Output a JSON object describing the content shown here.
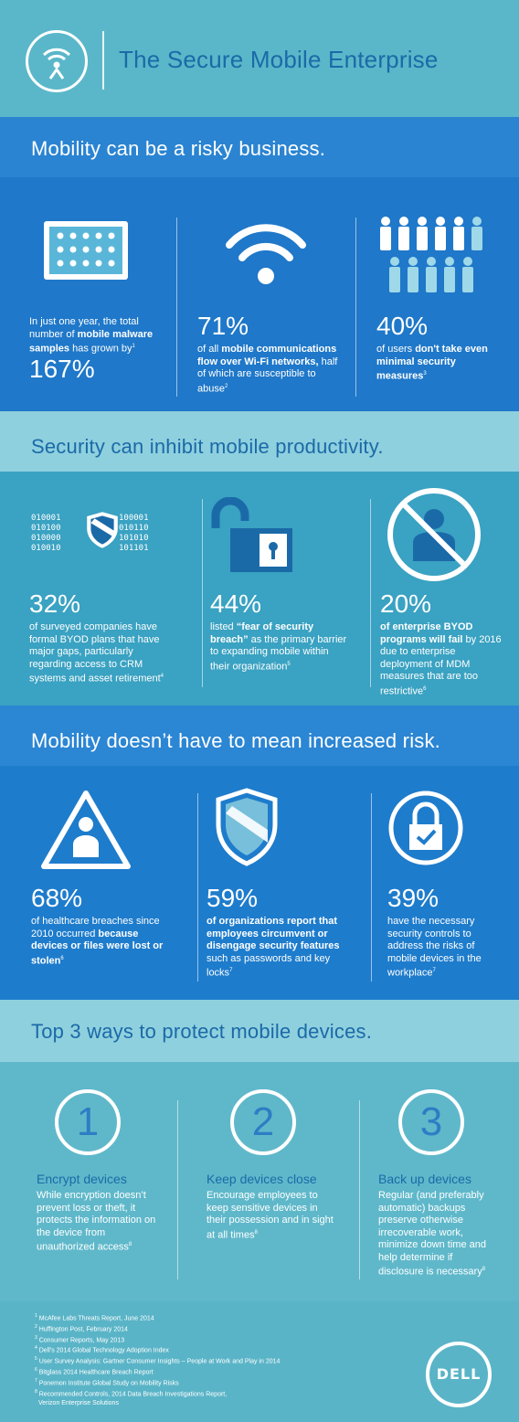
{
  "header": {
    "title": "The Secure Mobile Enterprise",
    "logo_icon": "wifi-person-icon"
  },
  "sections": [
    {
      "heading": "Mobility can be a risky business.",
      "stats": [
        {
          "intro": "In just one year, the total number of ",
          "bold": "mobile malware samples",
          "after": " has grown by",
          "ref": "1",
          "value": "167%",
          "icon": "malware-tablet-icon"
        },
        {
          "value": "71%",
          "text_pre": "of all ",
          "bold": "mobile communications flow over Wi-Fi networks,",
          "text_post": " half of which are susceptible to abuse",
          "ref": "2",
          "icon": "wifi-icon"
        },
        {
          "value": "40%",
          "text_pre": "of users ",
          "bold": "don't take even minimal security measures",
          "text_post": "",
          "ref": "3",
          "icon": "people-icon"
        }
      ]
    },
    {
      "heading": "Security can inhibit mobile productivity.",
      "stats": [
        {
          "value": "32%",
          "text_pre": "of surveyed companies have formal BYOD plans that have major gaps, particularly regarding access to CRM systems and asset retirement",
          "bold": "",
          "text_post": "",
          "ref": "4",
          "icon": "binary-shield-icon",
          "binary": [
            "010001",
            "100001",
            "010100",
            "010110",
            "010000",
            "101010",
            "010010",
            "101101"
          ]
        },
        {
          "value": "44%",
          "text_pre": "listed ",
          "bold": "“fear of security breach”",
          "text_post": " as the primary barrier to expanding mobile within their organization",
          "ref": "5",
          "icon": "open-padlock-icon"
        },
        {
          "value": "20%",
          "text_pre": "",
          "bold": "of enterprise BYOD programs will fail",
          "text_post": " by 2016 due to enterprise deployment of MDM measures that are too restrictive",
          "ref": "6",
          "icon": "no-phone-icon"
        }
      ]
    },
    {
      "heading": "Mobility doesn’t have to mean increased risk.",
      "stats": [
        {
          "value": "68%",
          "text_pre": "of healthcare breaches since 2010 occurred ",
          "bold": "because devices or files were lost or stolen",
          "text_post": "",
          "ref": "6",
          "icon": "doctor-warning-icon"
        },
        {
          "value": "59%",
          "text_pre": "",
          "bold": "of organizations report that employees circumvent or disengage security features",
          "text_post": " such as passwords and key locks",
          "ref": "7",
          "icon": "shield-icon"
        },
        {
          "value": "39%",
          "text_pre": "have the necessary security controls to address the risks of mobile devices in the workplace",
          "bold": "",
          "text_post": "",
          "ref": "7",
          "icon": "lock-check-icon"
        }
      ]
    }
  ],
  "top3": {
    "heading": "Top 3 ways to protect mobile devices.",
    "steps": [
      {
        "number": "1",
        "title": "Encrypt devices",
        "text": "While encryption doesn’t prevent loss or theft, it protects the information on the device from unauthorized access",
        "ref": "8"
      },
      {
        "number": "2",
        "title": "Keep devices close",
        "text": "Encourage employees to keep sensitive devices in their possession and in sight at all times",
        "ref": "8"
      },
      {
        "number": "3",
        "title": "Back up devices",
        "text": "Regular (and preferably automatic) backups preserve otherwise irrecoverable work, minimize down time and help determine if disclosure is necessary",
        "ref": "8"
      }
    ]
  },
  "references": [
    {
      "n": "1",
      "text": "McAfee Labs Threats Report, June 2014"
    },
    {
      "n": "2",
      "text": "Huffington Post, February 2014"
    },
    {
      "n": "3",
      "text": "Consumer Reports, May 2013"
    },
    {
      "n": "4",
      "text": "Dell’s 2014 Global Technology Adoption Index"
    },
    {
      "n": "5",
      "text": "User Survey Analysis: Gartner Consumer Insights – People at Work and Play in 2014"
    },
    {
      "n": "6",
      "text": "Bitglass 2014 Healthcare Breach Report"
    },
    {
      "n": "7",
      "text": "Ponemon Institute Global Study on Mobility Risks"
    },
    {
      "n": "8",
      "text": "Recommended Controls, 2014 Data Breach Investigations Report,"
    },
    {
      "n": "",
      "text": "Verizon Enterprise Solutions"
    }
  ],
  "brand": {
    "logo_text": "DELL"
  },
  "colors": {
    "dark_blue": "#1b6aa8",
    "band_blue": "#1f78c9",
    "teal": "#5ab7c9",
    "light_teal": "#8fd0de"
  }
}
